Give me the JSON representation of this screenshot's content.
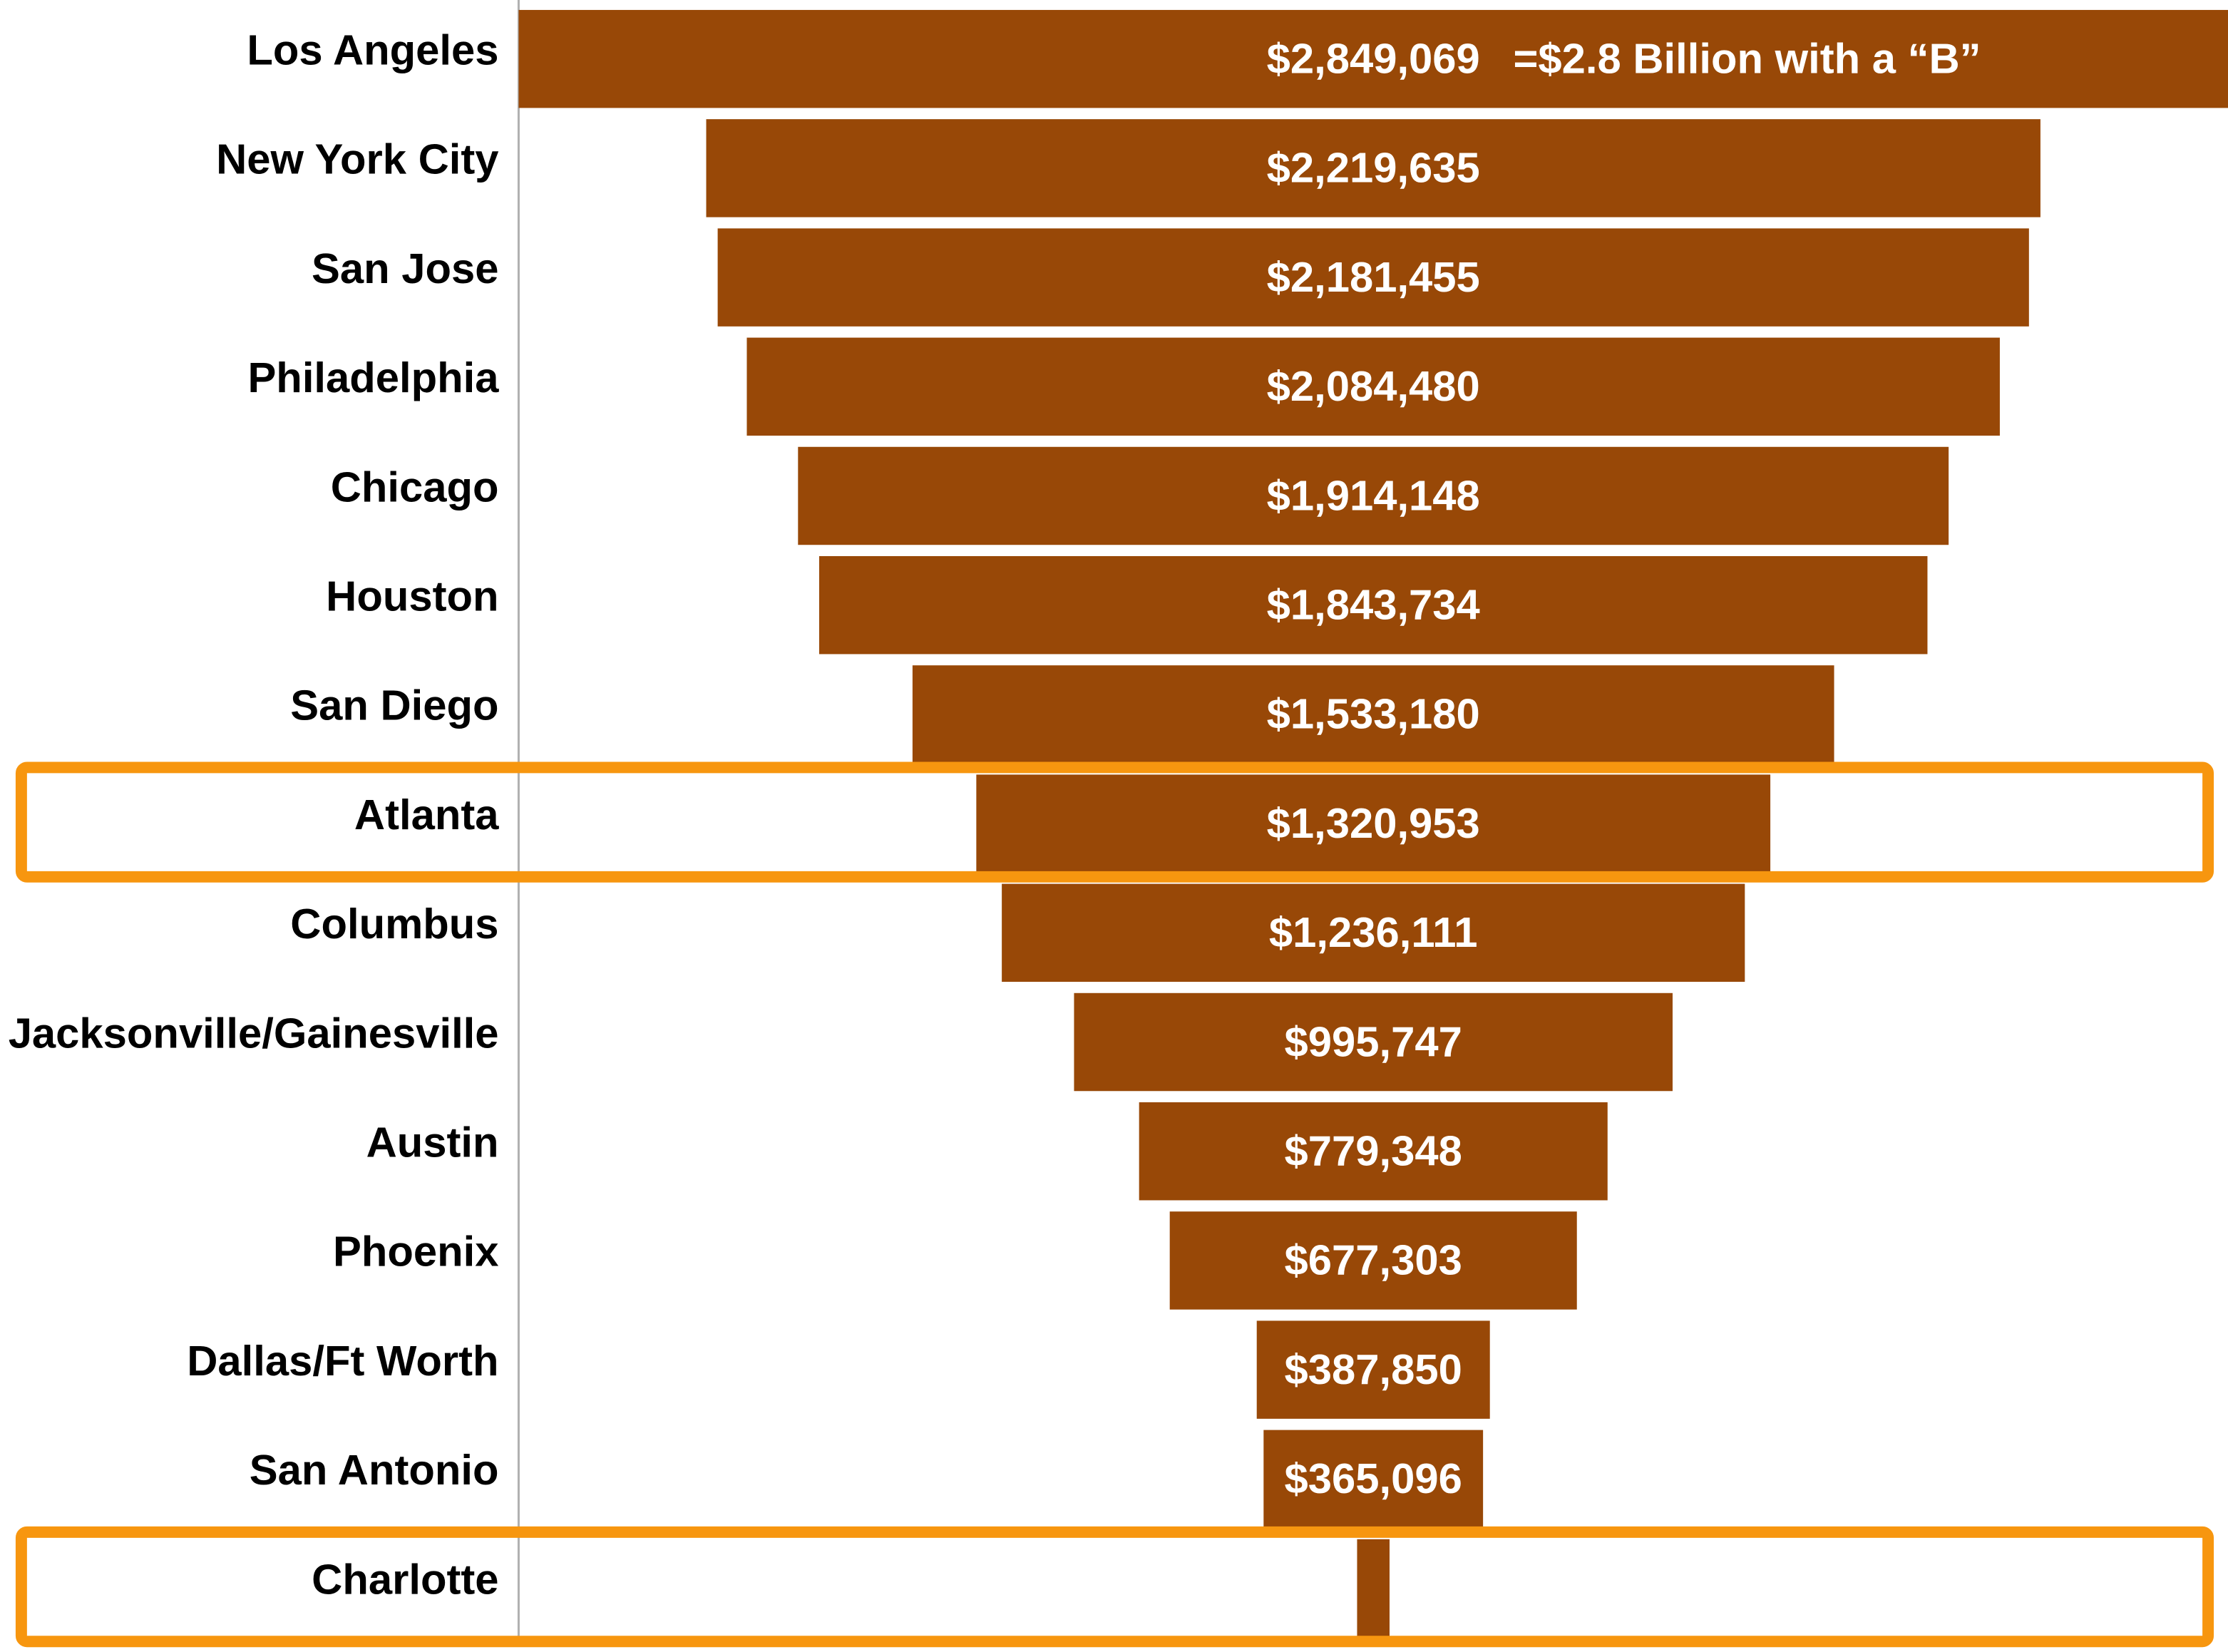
{
  "chart_data": {
    "type": "funnel",
    "categories": [
      "Los Angeles",
      "New York City",
      "San Jose",
      "Philadelphia",
      "Chicago",
      "Houston",
      "San Diego",
      "Atlanta",
      "Columbus",
      "Jacksonville/Gainesville",
      "Austin",
      "Phoenix",
      "Dallas/Ft Worth",
      "San Antonio",
      "Charlotte"
    ],
    "values": [
      2849069,
      2219635,
      2181455,
      2084480,
      1914148,
      1843734,
      1533180,
      1320953,
      1236111,
      995747,
      779348,
      677303,
      387850,
      365096,
      54000
    ],
    "value_labels": [
      "$2,849,069",
      "$2,219,635",
      "$2,181,455",
      "$2,084,480",
      "$1,914,148",
      "$1,843,734",
      "$1,533,180",
      "$1,320,953",
      "$1,236,111",
      "$995,747",
      "$779,348",
      "$677,303",
      "$387,850",
      "$365,096",
      null
    ],
    "annotation": "=$2.8 Billion with a “B”",
    "color": "#984807",
    "highlighted": [
      "Atlanta",
      "Charlotte"
    ],
    "highlight_color": "#f7960f"
  }
}
